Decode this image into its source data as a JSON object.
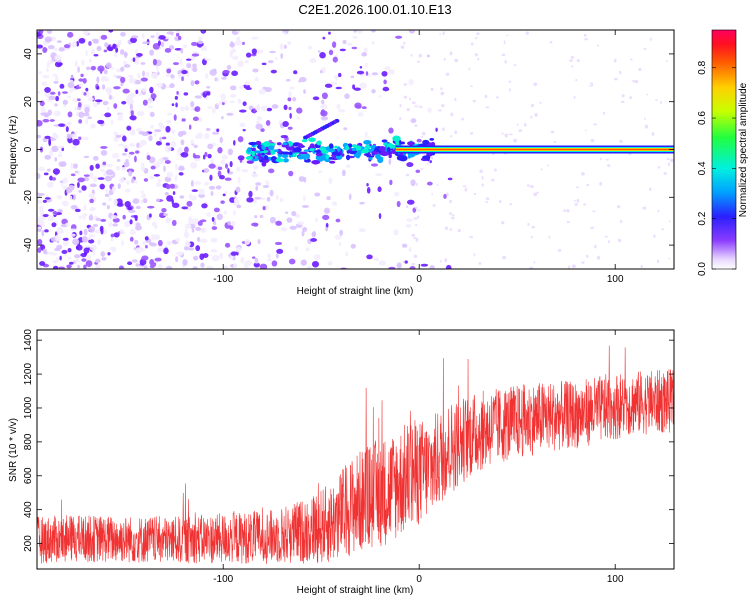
{
  "title": "C2E1.2026.100.01.10.E13",
  "chart_data": [
    {
      "type": "heatmap",
      "xlabel": "Height of straight line (km)",
      "ylabel": "Frequency (Hz)",
      "xlim": [
        -195,
        130
      ],
      "ylim": [
        -50,
        50
      ],
      "xticks": [
        -100,
        0,
        100
      ],
      "xtick_labels": [
        "-100",
        "0",
        "100"
      ],
      "yticks": [
        -40,
        -20,
        0,
        20,
        40
      ],
      "ytick_labels": [
        "-40",
        "-20",
        "0",
        "20",
        "40"
      ],
      "colorbar": {
        "label": "Normalized spectral amplitude",
        "range": [
          0,
          0.95
        ],
        "ticks": [
          0,
          0.2,
          0.4,
          0.6,
          0.8
        ],
        "tick_labels": [
          "0.0",
          "0.2",
          "0.4",
          "0.6",
          "0.8"
        ],
        "colormap": "rainbow"
      },
      "features": {
        "noise_region_x": [
          -195,
          -10
        ],
        "signal_track": {
          "x_start": -87,
          "x_end": 130,
          "frequency": 0,
          "amplitude": 0.9
        },
        "secondary_track": {
          "x": [
            -42,
            -58
          ],
          "frequency": [
            12,
            5
          ]
        }
      }
    },
    {
      "type": "line",
      "xlabel": "Height of straight line (km)",
      "ylabel": "SNR (10 * v/v)",
      "xlim": [
        -195,
        130
      ],
      "ylim": [
        50,
        1460
      ],
      "xticks": [
        -100,
        0,
        100
      ],
      "xtick_labels": [
        "-100",
        "0",
        "100"
      ],
      "yticks": [
        200,
        400,
        600,
        800,
        1000,
        1200,
        1400
      ],
      "ytick_labels": [
        "200",
        "400",
        "600",
        "800",
        "1000",
        "1200",
        "1400"
      ],
      "series": [
        {
          "name": "SNR",
          "color": "#f03232",
          "x": [
            -195,
            -175,
            -150,
            -125,
            -100,
            -75,
            -60,
            -45,
            -35,
            -25,
            -15,
            -5,
            5,
            15,
            25,
            35,
            50,
            65,
            80,
            95,
            110,
            130
          ],
          "values": [
            220,
            230,
            225,
            220,
            230,
            240,
            270,
            320,
            420,
            480,
            520,
            600,
            640,
            760,
            830,
            880,
            920,
            950,
            960,
            1000,
            1030,
            1040
          ],
          "spread": [
            140,
            140,
            140,
            140,
            150,
            160,
            190,
            240,
            290,
            320,
            330,
            330,
            300,
            280,
            250,
            230,
            220,
            210,
            200,
            200,
            190,
            190
          ]
        }
      ]
    }
  ]
}
